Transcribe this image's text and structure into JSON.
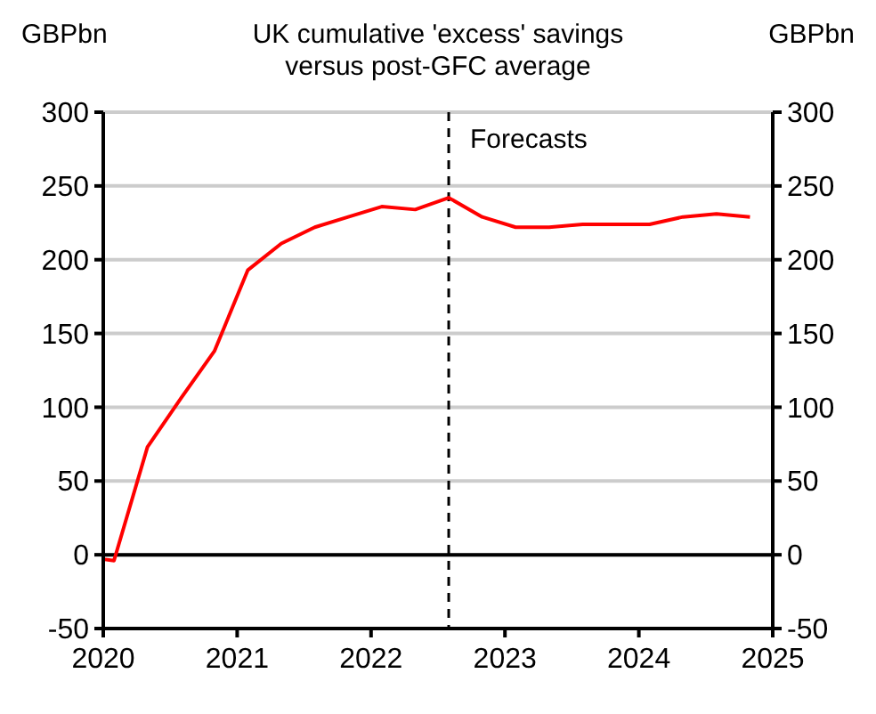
{
  "chart_data": {
    "type": "line",
    "title": "UK cumulative 'excess' savings versus post-GFC average",
    "ylabel": "GBPbn",
    "y2label": "GBPbn",
    "x": [
      2020,
      2020.08,
      2020.33,
      2020.58,
      2020.83,
      2021.08,
      2021.33,
      2021.58,
      2021.83,
      2022.08,
      2022.33,
      2022.58,
      2022.83,
      2023.08,
      2023.33,
      2023.58,
      2023.83,
      2024.08,
      2024.33,
      2024.58,
      2024.83
    ],
    "series": [
      {
        "color": "#ff0000",
        "values": [
          -3,
          -4,
          73,
          106,
          138,
          193,
          211,
          222,
          229,
          236,
          234,
          242,
          229,
          222,
          222,
          224,
          224,
          224,
          229,
          231,
          229
        ]
      }
    ],
    "xlim": [
      2020,
      2025
    ],
    "xticks": [
      2020,
      2021,
      2022,
      2023,
      2024,
      2025
    ],
    "ylim": [
      -50,
      300
    ],
    "yticks": [
      -50,
      0,
      50,
      100,
      150,
      200,
      250,
      300
    ],
    "y2lim": [
      -50,
      300
    ],
    "y2ticks": [
      -50,
      0,
      50,
      100,
      150,
      200,
      250,
      300
    ],
    "grid": "y",
    "ref_lines": [
      {
        "axis": "x",
        "value": 2022.58,
        "label": "Forecasts",
        "color": "#000000",
        "line_style": "dashed"
      },
      {
        "axis": "y",
        "value": 0,
        "label": null,
        "color": "#000000",
        "line_style": "solid"
      }
    ]
  }
}
